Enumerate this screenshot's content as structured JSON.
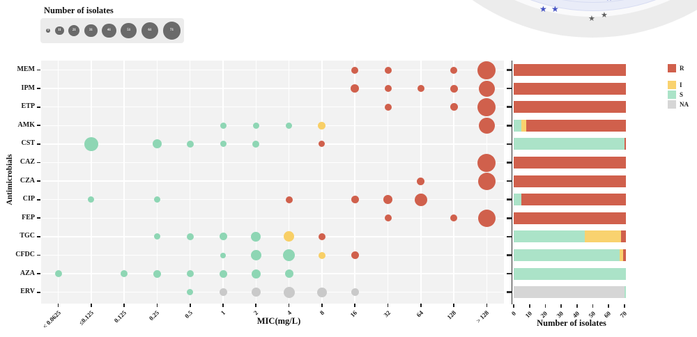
{
  "colors": {
    "R": "#d0604c",
    "I": "#f9d26f",
    "S": "#abe3c8",
    "NA": "#d6d6d6",
    "bubble_R": "#d0604c",
    "bubble_I": "#f8cf66",
    "bubble_S": "#8ed6b4",
    "bubble_NA": "#c9c9c9",
    "size_legend_bubble": "#6a6a6a",
    "panel_bg": "#f2f2f2",
    "axis": "#2b2b2b",
    "arc_gray": "#ececec",
    "arc_gap": "#fafafb",
    "arc_lavender": "#e9ecf8",
    "arc_ring_line": "#d7dcf2",
    "star_blue": "#4452c4",
    "star_gray": "#5f5f5f",
    "star_symbol": "★"
  },
  "chart_data": [
    {
      "type": "scatter",
      "subtype": "bubble-grid",
      "xlabel": "MIC(mg/L)",
      "ylabel": "Antimicrobials",
      "x_categories": [
        "< 0.0625",
        "≤0.125",
        "0.125",
        "0.25",
        "0.5",
        "1",
        "2",
        "4",
        "8",
        "16",
        "32",
        "64",
        "128",
        "> 128"
      ],
      "y_categories": [
        "MEM",
        "IPM",
        "ETP",
        "AMK",
        "CST",
        "CAZ",
        "CZA",
        "CIP",
        "FEP",
        "TGC",
        "CFDC",
        "AZA",
        "ERV"
      ],
      "size_legend": {
        "title": "Number of isolates",
        "values": [
          1,
          11,
          21,
          31,
          41,
          51,
          61,
          71
        ]
      },
      "rows": [
        {
          "label": "MEM",
          "bubbles": [
            {
              "x": "16",
              "k": "R",
              "n": 4,
              "d": 10
            },
            {
              "x": "32",
              "k": "R",
              "n": 4,
              "d": 10
            },
            {
              "x": "128",
              "k": "R",
              "n": 4,
              "d": 10
            },
            {
              "x": "> 128",
              "k": "R",
              "n": 58,
              "d": 26
            }
          ]
        },
        {
          "label": "IPM",
          "bubbles": [
            {
              "x": "16",
              "k": "R",
              "n": 7,
              "d": 12
            },
            {
              "x": "32",
              "k": "R",
              "n": 4,
              "d": 10
            },
            {
              "x": "64",
              "k": "R",
              "n": 4,
              "d": 10
            },
            {
              "x": "128",
              "k": "R",
              "n": 5,
              "d": 11
            },
            {
              "x": "> 128",
              "k": "R",
              "n": 50,
              "d": 23
            }
          ]
        },
        {
          "label": "ETP",
          "bubbles": [
            {
              "x": "32",
              "k": "R",
              "n": 4,
              "d": 10
            },
            {
              "x": "128",
              "k": "R",
              "n": 6,
              "d": 11
            },
            {
              "x": "> 128",
              "k": "R",
              "n": 60,
              "d": 26
            }
          ]
        },
        {
          "label": "AMK",
          "bubbles": [
            {
              "x": "1",
              "k": "S",
              "n": 2,
              "d": 9
            },
            {
              "x": "2",
              "k": "S",
              "n": 2,
              "d": 9
            },
            {
              "x": "4",
              "k": "S",
              "n": 2,
              "d": 9
            },
            {
              "x": "8",
              "k": "I",
              "n": 5,
              "d": 11
            },
            {
              "x": "> 128",
              "k": "R",
              "n": 56,
              "d": 23
            }
          ]
        },
        {
          "label": "CST",
          "bubbles": [
            {
              "x": "≤0.125",
              "k": "S",
              "n": 38,
              "d": 20
            },
            {
              "x": "0.25",
              "k": "S",
              "n": 10,
              "d": 13
            },
            {
              "x": "0.5",
              "k": "S",
              "n": 4,
              "d": 10
            },
            {
              "x": "1",
              "k": "S",
              "n": 3,
              "d": 9
            },
            {
              "x": "2",
              "k": "S",
              "n": 4,
              "d": 10
            },
            {
              "x": "8",
              "k": "R",
              "n": 3,
              "d": 9
            }
          ]
        },
        {
          "label": "CAZ",
          "bubbles": [
            {
              "x": "> 128",
              "k": "R",
              "n": 68,
              "d": 26
            }
          ]
        },
        {
          "label": "CZA",
          "bubbles": [
            {
              "x": "64",
              "k": "R",
              "n": 5,
              "d": 11
            },
            {
              "x": "> 128",
              "k": "R",
              "n": 64,
              "d": 25
            }
          ]
        },
        {
          "label": "CIP",
          "bubbles": [
            {
              "x": "≤0.125",
              "k": "S",
              "n": 3,
              "d": 9
            },
            {
              "x": "0.25",
              "k": "S",
              "n": 2,
              "d": 9
            },
            {
              "x": "4",
              "k": "R",
              "n": 4,
              "d": 10
            },
            {
              "x": "16",
              "k": "R",
              "n": 6,
              "d": 11
            },
            {
              "x": "32",
              "k": "R",
              "n": 10,
              "d": 13
            },
            {
              "x": "64",
              "k": "R",
              "n": 35,
              "d": 18
            }
          ]
        },
        {
          "label": "FEP",
          "bubbles": [
            {
              "x": "32",
              "k": "R",
              "n": 4,
              "d": 10
            },
            {
              "x": "128",
              "k": "R",
              "n": 4,
              "d": 10
            },
            {
              "x": "> 128",
              "k": "R",
              "n": 62,
              "d": 25
            }
          ]
        },
        {
          "label": "TGC",
          "bubbles": [
            {
              "x": "0.25",
              "k": "S",
              "n": 3,
              "d": 9
            },
            {
              "x": "0.5",
              "k": "S",
              "n": 4,
              "d": 10
            },
            {
              "x": "1",
              "k": "S",
              "n": 6,
              "d": 11
            },
            {
              "x": "2",
              "k": "S",
              "n": 12,
              "d": 14
            },
            {
              "x": "4",
              "k": "I",
              "n": 16,
              "d": 15
            },
            {
              "x": "8",
              "k": "R",
              "n": 4,
              "d": 10
            }
          ]
        },
        {
          "label": "CFDC",
          "bubbles": [
            {
              "x": "1",
              "k": "S",
              "n": 2,
              "d": 8
            },
            {
              "x": "2",
              "k": "S",
              "n": 15,
              "d": 15
            },
            {
              "x": "4",
              "k": "S",
              "n": 22,
              "d": 17
            },
            {
              "x": "8",
              "k": "I",
              "n": 4,
              "d": 10
            },
            {
              "x": "16",
              "k": "R",
              "n": 5,
              "d": 11
            }
          ]
        },
        {
          "label": "AZA",
          "bubbles": [
            {
              "x": "< 0.0625",
              "k": "S",
              "n": 4,
              "d": 10
            },
            {
              "x": "0.125",
              "k": "S",
              "n": 4,
              "d": 10
            },
            {
              "x": "0.25",
              "k": "S",
              "n": 5,
              "d": 11
            },
            {
              "x": "0.5",
              "k": "S",
              "n": 4,
              "d": 10
            },
            {
              "x": "1",
              "k": "S",
              "n": 6,
              "d": 11
            },
            {
              "x": "2",
              "k": "S",
              "n": 9,
              "d": 13
            },
            {
              "x": "4",
              "k": "S",
              "n": 7,
              "d": 12
            }
          ]
        },
        {
          "label": "ERV",
          "bubbles": [
            {
              "x": "0.5",
              "k": "S",
              "n": 2,
              "d": 9
            },
            {
              "x": "1",
              "k": "NA",
              "n": 6,
              "d": 11
            },
            {
              "x": "2",
              "k": "NA",
              "n": 9,
              "d": 13
            },
            {
              "x": "4",
              "k": "NA",
              "n": 18,
              "d": 16
            },
            {
              "x": "8",
              "k": "NA",
              "n": 13,
              "d": 14
            },
            {
              "x": "16",
              "k": "NA",
              "n": 6,
              "d": 11
            }
          ]
        }
      ]
    },
    {
      "type": "bar",
      "orientation": "horizontal",
      "stacked": true,
      "xlabel": "Number of isolates",
      "x_ticks": [
        0,
        10,
        20,
        30,
        40,
        50,
        60,
        70
      ],
      "xlim": [
        0,
        72
      ],
      "legend_position": "right",
      "legend": [
        "R",
        "I",
        "S",
        "NA"
      ],
      "categories": [
        "MEM",
        "IPM",
        "ETP",
        "AMK",
        "CST",
        "CAZ",
        "CZA",
        "CIP",
        "FEP",
        "TGC",
        "CFDC",
        "AZA",
        "ERV"
      ],
      "rows": [
        {
          "label": "MEM",
          "segments": [
            {
              "k": "R",
              "v": 71
            }
          ]
        },
        {
          "label": "IPM",
          "segments": [
            {
              "k": "R",
              "v": 71
            }
          ]
        },
        {
          "label": "ETP",
          "segments": [
            {
              "k": "R",
              "v": 71
            }
          ]
        },
        {
          "label": "AMK",
          "segments": [
            {
              "k": "S",
              "v": 5
            },
            {
              "k": "I",
              "v": 3
            },
            {
              "k": "R",
              "v": 63
            }
          ]
        },
        {
          "label": "CST",
          "segments": [
            {
              "k": "S",
              "v": 70
            },
            {
              "k": "R",
              "v": 1
            }
          ]
        },
        {
          "label": "CAZ",
          "segments": [
            {
              "k": "R",
              "v": 71
            }
          ]
        },
        {
          "label": "CZA",
          "segments": [
            {
              "k": "R",
              "v": 71
            }
          ]
        },
        {
          "label": "CIP",
          "segments": [
            {
              "k": "S",
              "v": 5
            },
            {
              "k": "R",
              "v": 66
            }
          ]
        },
        {
          "label": "FEP",
          "segments": [
            {
              "k": "R",
              "v": 71
            }
          ]
        },
        {
          "label": "TGC",
          "segments": [
            {
              "k": "S",
              "v": 45
            },
            {
              "k": "I",
              "v": 23
            },
            {
              "k": "R",
              "v": 3
            }
          ]
        },
        {
          "label": "CFDC",
          "segments": [
            {
              "k": "S",
              "v": 67
            },
            {
              "k": "I",
              "v": 2
            },
            {
              "k": "R",
              "v": 2
            }
          ]
        },
        {
          "label": "AZA",
          "segments": [
            {
              "k": "S",
              "v": 71
            }
          ]
        },
        {
          "label": "ERV",
          "segments": [
            {
              "k": "NA",
              "v": 70
            },
            {
              "k": "S",
              "v": 1
            }
          ]
        }
      ]
    }
  ]
}
